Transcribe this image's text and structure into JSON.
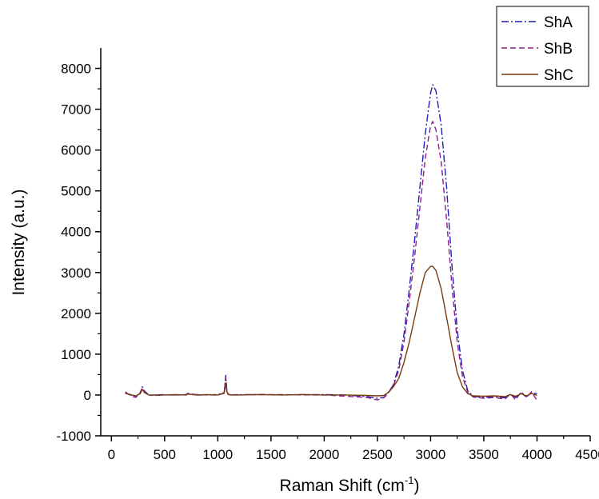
{
  "chart_data": {
    "type": "line",
    "xlabel_main": "Raman Shift (cm",
    "xlabel_sup": "-1",
    "xlabel_close": ")",
    "ylabel": "Intensity (a.u.)",
    "xlim": [
      -100,
      4500
    ],
    "ylim": [
      -1000,
      8500
    ],
    "xticks": [
      0,
      500,
      1000,
      1500,
      2000,
      2500,
      3000,
      3500,
      4000,
      4500
    ],
    "yticks": [
      -1000,
      0,
      1000,
      2000,
      3000,
      4000,
      5000,
      6000,
      7000,
      8000
    ],
    "grid": false,
    "legend_position": "top-right",
    "series": [
      {
        "name": "ShA",
        "color": "#1f1fb4",
        "dash": "9,3,2,3",
        "x": [
          130,
          180,
          230,
          270,
          290,
          310,
          350,
          400,
          500,
          600,
          700,
          720,
          800,
          900,
          1000,
          1060,
          1075,
          1085,
          1095,
          1110,
          1200,
          1400,
          1600,
          1800,
          2000,
          2200,
          2400,
          2500,
          2560,
          2600,
          2650,
          2700,
          2750,
          2800,
          2850,
          2900,
          2950,
          3000,
          3020,
          3050,
          3100,
          3150,
          3200,
          3250,
          3300,
          3350,
          3400,
          3500,
          3600,
          3700,
          3750,
          3800,
          3850,
          3900,
          3950,
          4000
        ],
        "y": [
          60,
          0,
          -40,
          40,
          200,
          100,
          0,
          -10,
          0,
          0,
          10,
          40,
          0,
          0,
          10,
          60,
          480,
          120,
          30,
          0,
          10,
          10,
          0,
          10,
          10,
          0,
          -40,
          -80,
          -60,
          50,
          250,
          700,
          1500,
          2600,
          3800,
          5100,
          6400,
          7400,
          7600,
          7450,
          6600,
          5100,
          3200,
          1600,
          600,
          100,
          -30,
          -60,
          -40,
          -70,
          20,
          -60,
          50,
          -40,
          60,
          30
        ]
      },
      {
        "name": "ShB",
        "color": "#8b1f8b",
        "dash": "7,4",
        "x": [
          130,
          180,
          230,
          270,
          290,
          310,
          350,
          400,
          500,
          600,
          700,
          720,
          800,
          900,
          1000,
          1060,
          1075,
          1085,
          1095,
          1110,
          1200,
          1400,
          1600,
          1800,
          2000,
          2200,
          2400,
          2500,
          2560,
          2600,
          2650,
          2700,
          2750,
          2800,
          2850,
          2900,
          2950,
          3000,
          3020,
          3050,
          3100,
          3150,
          3200,
          3250,
          3300,
          3350,
          3400,
          3500,
          3600,
          3700,
          3750,
          3800,
          3850,
          3900,
          3950,
          4000
        ],
        "y": [
          80,
          -20,
          -60,
          60,
          180,
          80,
          -10,
          0,
          10,
          0,
          0,
          30,
          10,
          0,
          0,
          50,
          440,
          100,
          20,
          10,
          0,
          10,
          10,
          0,
          0,
          -30,
          -60,
          -120,
          -70,
          40,
          220,
          600,
          1300,
          2300,
          3400,
          4600,
          5800,
          6600,
          6700,
          6500,
          5700,
          4300,
          2700,
          1300,
          450,
          60,
          -50,
          -80,
          -60,
          -100,
          30,
          -120,
          80,
          -60,
          80,
          -140
        ]
      },
      {
        "name": "ShC",
        "color": "#7a3a0e",
        "dash": "",
        "x": [
          130,
          180,
          230,
          270,
          290,
          310,
          350,
          400,
          500,
          600,
          700,
          720,
          800,
          900,
          1000,
          1060,
          1075,
          1085,
          1095,
          1110,
          1200,
          1400,
          1600,
          1800,
          2000,
          2200,
          2400,
          2500,
          2560,
          2600,
          2650,
          2700,
          2750,
          2800,
          2850,
          2900,
          2950,
          3000,
          3020,
          3050,
          3100,
          3150,
          3200,
          3250,
          3300,
          3350,
          3400,
          3500,
          3600,
          3700,
          3750,
          3800,
          3850,
          3900,
          3950,
          4000
        ],
        "y": [
          40,
          10,
          -20,
          30,
          140,
          60,
          0,
          0,
          0,
          10,
          0,
          20,
          0,
          10,
          0,
          40,
          300,
          80,
          20,
          0,
          0,
          10,
          0,
          10,
          0,
          0,
          -10,
          -20,
          -10,
          60,
          200,
          400,
          800,
          1300,
          1900,
          2500,
          3000,
          3150,
          3150,
          3050,
          2600,
          1900,
          1200,
          550,
          200,
          30,
          -20,
          -30,
          -20,
          -40,
          10,
          -30,
          30,
          -20,
          40,
          -10
        ]
      }
    ]
  }
}
